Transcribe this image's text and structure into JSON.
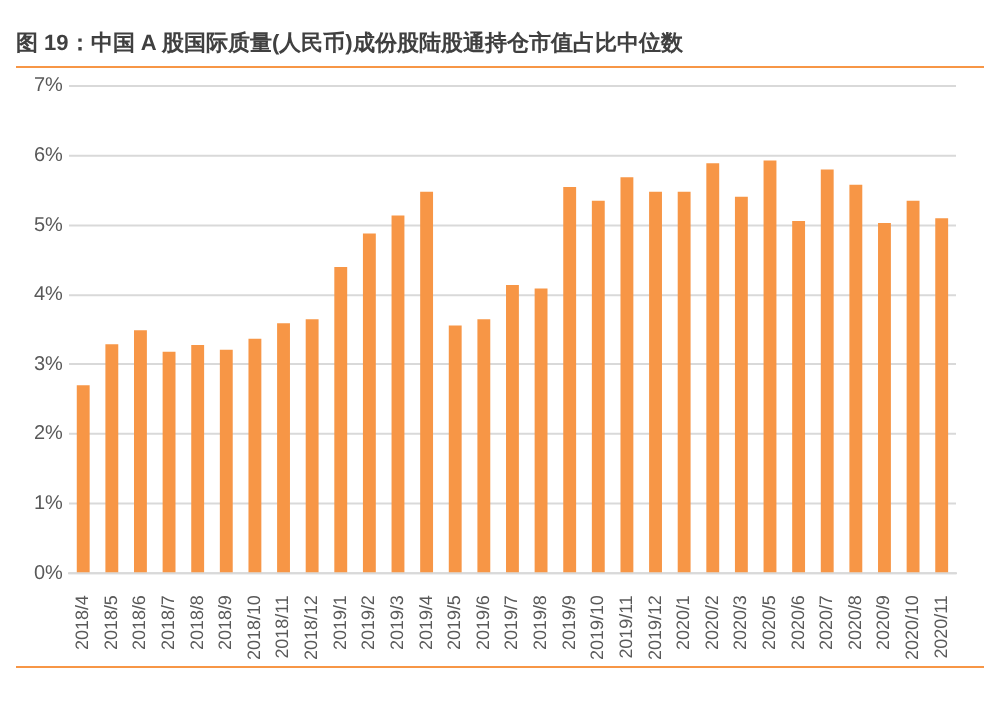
{
  "chart_data": {
    "type": "bar",
    "title": "图 19：中国 A 股国际质量(人民币)成份股陆股通持仓市值占比中位数",
    "categories": [
      "2018/4",
      "2018/5",
      "2018/6",
      "2018/7",
      "2018/8",
      "2018/9",
      "2018/10",
      "2018/11",
      "2018/12",
      "2019/1",
      "2019/2",
      "2019/3",
      "2019/4",
      "2019/5",
      "2019/6",
      "2019/7",
      "2019/8",
      "2019/9",
      "2019/10",
      "2019/11",
      "2019/12",
      "2020/1",
      "2020/2",
      "2020/3",
      "2020/5",
      "2020/6",
      "2020/7",
      "2020/8",
      "2020/9",
      "2020/10",
      "2020/11"
    ],
    "values": [
      2.7,
      3.29,
      3.49,
      3.18,
      3.28,
      3.21,
      3.37,
      3.59,
      3.65,
      4.4,
      4.88,
      5.14,
      5.48,
      3.56,
      3.65,
      4.14,
      4.09,
      5.55,
      5.35,
      5.69,
      5.48,
      5.48,
      5.89,
      5.41,
      5.93,
      5.06,
      5.8,
      5.58,
      5.03,
      5.35,
      5.1
    ],
    "color": "#f79646",
    "ylim": [
      0,
      7
    ],
    "yticks": [
      {
        "value": 0,
        "label": "0%"
      },
      {
        "value": 1,
        "label": "1%"
      },
      {
        "value": 2,
        "label": "2%"
      },
      {
        "value": 3,
        "label": "3%"
      },
      {
        "value": 4,
        "label": "4%"
      },
      {
        "value": 5,
        "label": "5%"
      },
      {
        "value": 6,
        "label": "6%"
      },
      {
        "value": 7,
        "label": "7%"
      }
    ],
    "grid": "y"
  }
}
